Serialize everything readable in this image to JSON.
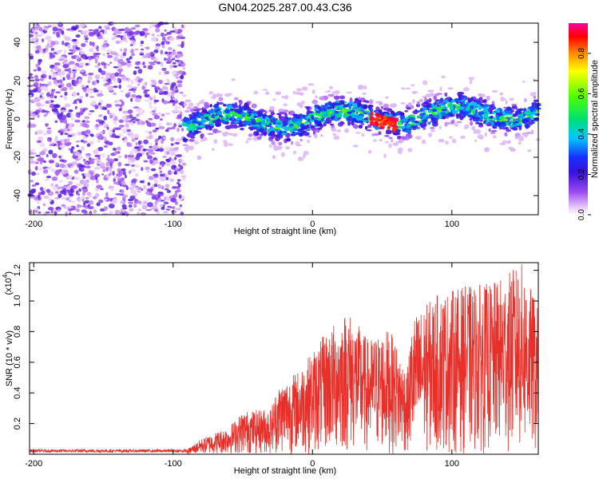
{
  "title": "GN04.2025.287.00.43.C36",
  "chart_data": [
    {
      "type": "heatmap",
      "xlabel": "Height of straight line (km)",
      "ylabel": "Frequency (Hz)",
      "xlim": [
        -203,
        162
      ],
      "ylim": [
        -50,
        50
      ],
      "xticks": [
        -200,
        -100,
        0,
        100
      ],
      "xtick_labels": [
        "-200",
        "-100",
        "0",
        "100"
      ],
      "yticks": [
        -40,
        -20,
        0,
        20,
        40
      ],
      "ytick_labels": [
        "-40",
        "-20",
        "0",
        "20",
        "40"
      ],
      "colorbar": {
        "label": "Normalized spectral amplitude",
        "range": [
          0.0,
          0.95
        ],
        "ticks": [
          0.0,
          0.2,
          0.4,
          0.6,
          0.8
        ],
        "tick_labels": [
          "0.0",
          "0.2",
          "0.4",
          "0.6",
          "0.8"
        ]
      },
      "features": {
        "noise_region_x": [
          -203,
          -92
        ],
        "signal_band_center_hz": 0,
        "peak_x": [
          45,
          60
        ]
      }
    },
    {
      "type": "line",
      "xlabel": "Height of straight line (km)",
      "ylabel": "SNR (10 * v/v)",
      "scale_label": "(x10",
      "scale_exp": "4",
      "scale_close": ")",
      "xlim": [
        -203,
        162
      ],
      "ylim": [
        0,
        1.25
      ],
      "xticks": [
        -200,
        -100,
        0,
        100
      ],
      "xtick_labels": [
        "-200",
        "-100",
        "0",
        "100"
      ],
      "yticks": [
        0.2,
        0.4,
        0.6,
        0.8,
        1.0,
        1.2
      ],
      "ytick_labels": [
        "0.2",
        "0.4",
        "0.6",
        "0.8",
        "1.0",
        "1.2"
      ],
      "series_color": "#e8302a",
      "envelope": [
        {
          "x": -203,
          "y": 0.02
        },
        {
          "x": -90,
          "y": 0.03
        },
        {
          "x": -80,
          "y": 0.1
        },
        {
          "x": -60,
          "y": 0.18
        },
        {
          "x": -50,
          "y": 0.28
        },
        {
          "x": -30,
          "y": 0.3
        },
        {
          "x": -25,
          "y": 0.45
        },
        {
          "x": -10,
          "y": 0.55
        },
        {
          "x": 10,
          "y": 0.8
        },
        {
          "x": 25,
          "y": 0.95
        },
        {
          "x": 40,
          "y": 0.75
        },
        {
          "x": 55,
          "y": 0.82
        },
        {
          "x": 68,
          "y": 0.55
        },
        {
          "x": 72,
          "y": 0.9
        },
        {
          "x": 90,
          "y": 1.05
        },
        {
          "x": 110,
          "y": 1.1
        },
        {
          "x": 130,
          "y": 1.12
        },
        {
          "x": 150,
          "y": 1.25
        },
        {
          "x": 162,
          "y": 0.95
        }
      ]
    }
  ]
}
